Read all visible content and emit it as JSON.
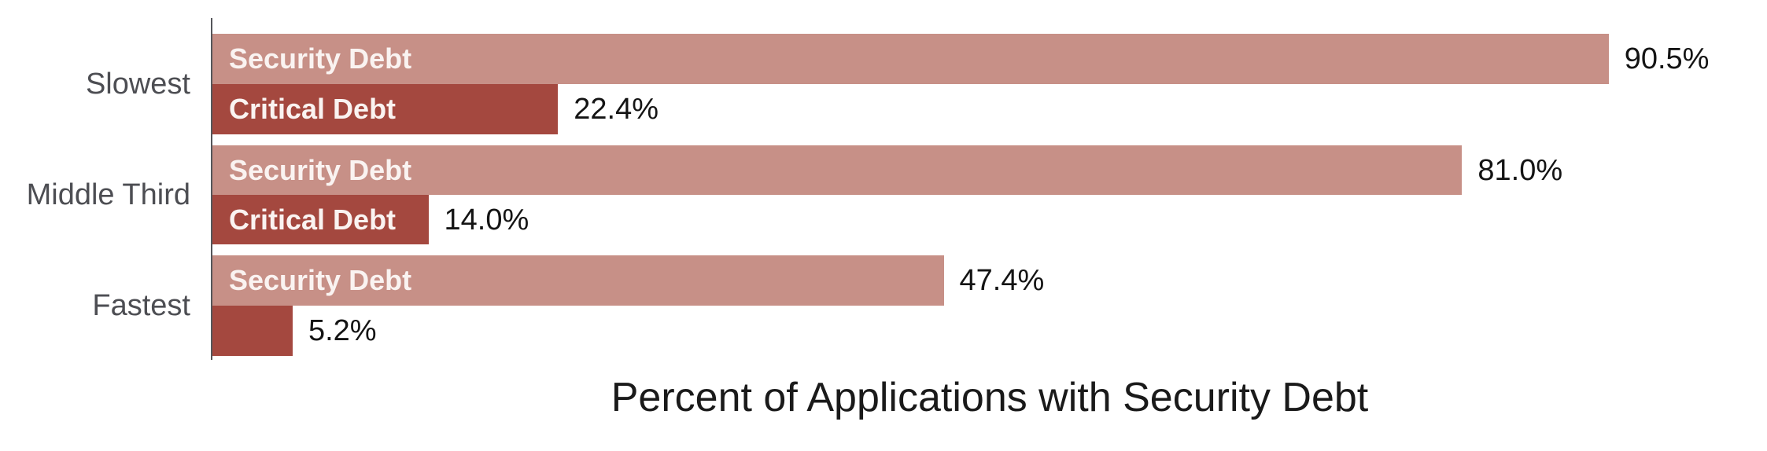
{
  "chart_data": {
    "type": "bar",
    "orientation": "horizontal",
    "title": "Percent of Applications with Security Debt",
    "categories": [
      "Slowest",
      "Middle Third",
      "Fastest"
    ],
    "series": [
      {
        "name": "Security Debt",
        "values": [
          90.5,
          81.0,
          47.4
        ]
      },
      {
        "name": "Critical Debt",
        "values": [
          22.4,
          14.0,
          5.2
        ]
      }
    ],
    "value_labels": {
      "security": [
        "90.5%",
        "81.0%",
        "47.4%"
      ],
      "critical": [
        "22.4%",
        "14.0%",
        "5.2%"
      ]
    },
    "xlim": [
      0,
      100
    ],
    "grid": "off",
    "legend": "labels-inside-bars",
    "axis_title_position": "bottom-center"
  },
  "colors": {
    "security_bar": "#c79087",
    "critical_bar": "#a4483f",
    "bar_label_text": "#faf3f1",
    "value_text": "#141414",
    "category_text": "#4d4e53",
    "axis_line": "#55565a",
    "title_text": "#1a1a1a",
    "background": "#ffffff"
  },
  "groups": [
    {
      "category": "Slowest",
      "security": {
        "label": "Security Debt",
        "value": 90.5,
        "value_label": "90.5%"
      },
      "critical": {
        "label": "Critical Debt",
        "value": 22.4,
        "value_label": "22.4%"
      }
    },
    {
      "category": "Middle Third",
      "security": {
        "label": "Security Debt",
        "value": 81.0,
        "value_label": "81.0%"
      },
      "critical": {
        "label": "Critical Debt",
        "value": 14.0,
        "value_label": "14.0%"
      }
    },
    {
      "category": "Fastest",
      "security": {
        "label": "Security Debt",
        "value": 47.4,
        "value_label": "47.4%"
      },
      "critical": {
        "label": "",
        "value": 5.2,
        "value_label": "5.2%"
      }
    }
  ],
  "axis_title": "Percent of Applications with Security Debt"
}
